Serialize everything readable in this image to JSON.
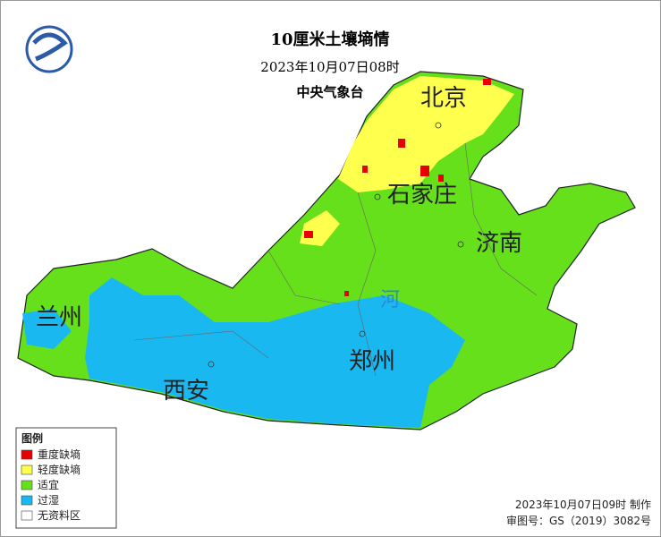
{
  "header": {
    "title": "10厘米土壤墒情",
    "datetime": "2023年10月07日08时",
    "agency": "中央气象台"
  },
  "legend": {
    "title": "图例",
    "items": [
      {
        "label": "重度缺墒",
        "color": "#e60000"
      },
      {
        "label": "轻度缺墒",
        "color": "#ffff4d"
      },
      {
        "label": "适宜",
        "color": "#66e01a"
      },
      {
        "label": "过湿",
        "color": "#1ab8f0"
      },
      {
        "label": "无资料区",
        "color": "#ffffff"
      }
    ]
  },
  "map": {
    "cities": [
      {
        "label": "北京"
      },
      {
        "label": "石家庄"
      },
      {
        "label": "济南"
      },
      {
        "label": "郑州"
      },
      {
        "label": "西安"
      },
      {
        "label": "兰州"
      }
    ],
    "river_label": "河"
  },
  "footer": {
    "made": "2023年10月07日09时 制作",
    "approval": "审图号：GS（2019）3082号"
  }
}
